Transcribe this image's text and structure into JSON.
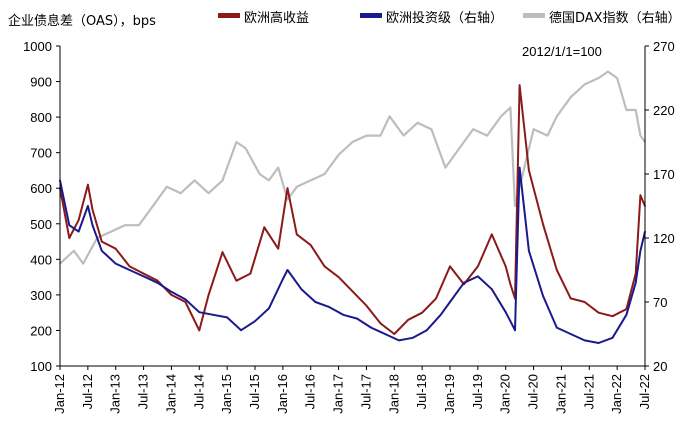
{
  "chart_data": {
    "type": "line",
    "ylabel": "企业债息差（OAS），bps",
    "annotation": "2012/1/1=100",
    "legend": {
      "placement": "top",
      "entries": [
        "欧洲高收益",
        "欧洲投资级（右轴）",
        "德国DAX指数（右轴）"
      ]
    },
    "grid": false,
    "x_range": [
      "2012-01",
      "2022-07"
    ],
    "x_ticks": [
      "Jan-12",
      "Jul-12",
      "Jan-13",
      "Jul-13",
      "Jan-14",
      "Jul-14",
      "Jan-15",
      "Jul-15",
      "Jan-16",
      "Jul-16",
      "Jan-17",
      "Jul-17",
      "Jan-18",
      "Jul-18",
      "Jan-19",
      "Jul-19",
      "Jan-20",
      "Jul-20",
      "Jan-21",
      "Jul-21",
      "Jan-22",
      "Jul-22"
    ],
    "y_left": {
      "min": 100,
      "max": 1000,
      "ticks": [
        100,
        200,
        300,
        400,
        500,
        600,
        700,
        800,
        900,
        1000
      ]
    },
    "y_right": {
      "min": 20,
      "max": 270,
      "ticks": [
        20,
        70,
        120,
        170,
        220,
        270
      ]
    },
    "series": [
      {
        "name": "欧洲高收益",
        "axis": "left",
        "color": "#8B1A1A",
        "x": [
          "2012-01",
          "2012-03",
          "2012-05",
          "2012-07",
          "2012-08",
          "2012-10",
          "2013-01",
          "2013-04",
          "2013-07",
          "2013-10",
          "2014-01",
          "2014-04",
          "2014-07",
          "2014-09",
          "2014-12",
          "2015-03",
          "2015-06",
          "2015-09",
          "2015-12",
          "2016-02",
          "2016-04",
          "2016-07",
          "2016-10",
          "2017-01",
          "2017-04",
          "2017-07",
          "2017-10",
          "2018-01",
          "2018-04",
          "2018-07",
          "2018-10",
          "2019-01",
          "2019-04",
          "2019-07",
          "2019-10",
          "2020-01",
          "2020-02",
          "2020-03",
          "2020-04",
          "2020-06",
          "2020-09",
          "2020-12",
          "2021-03",
          "2021-06",
          "2021-09",
          "2021-12",
          "2022-03",
          "2022-05",
          "2022-06",
          "2022-07"
        ],
        "values": [
          600,
          460,
          510,
          610,
          540,
          450,
          430,
          380,
          360,
          340,
          300,
          280,
          200,
          300,
          420,
          340,
          360,
          490,
          430,
          600,
          470,
          440,
          380,
          350,
          310,
          270,
          220,
          190,
          230,
          250,
          290,
          380,
          330,
          380,
          470,
          380,
          330,
          290,
          890,
          650,
          500,
          370,
          290,
          280,
          250,
          240,
          260,
          360,
          580,
          550
        ]
      },
      {
        "name": "欧洲投资级（右轴）",
        "axis": "right",
        "color": "#1A1A8C",
        "x": [
          "2012-01",
          "2012-03",
          "2012-05",
          "2012-07",
          "2012-08",
          "2012-10",
          "2013-01",
          "2013-04",
          "2013-07",
          "2013-10",
          "2014-01",
          "2014-04",
          "2014-07",
          "2014-10",
          "2015-01",
          "2015-04",
          "2015-07",
          "2015-10",
          "2016-01",
          "2016-02",
          "2016-05",
          "2016-08",
          "2016-11",
          "2017-02",
          "2017-05",
          "2017-08",
          "2017-11",
          "2018-02",
          "2018-05",
          "2018-08",
          "2018-11",
          "2019-01",
          "2019-04",
          "2019-07",
          "2019-10",
          "2020-01",
          "2020-02",
          "2020-03",
          "2020-04",
          "2020-06",
          "2020-09",
          "2020-12",
          "2021-03",
          "2021-06",
          "2021-09",
          "2021-12",
          "2022-03",
          "2022-05",
          "2022-06",
          "2022-07"
        ],
        "values": [
          165,
          130,
          125,
          145,
          130,
          110,
          100,
          95,
          90,
          85,
          78,
          72,
          62,
          60,
          58,
          48,
          55,
          65,
          88,
          95,
          80,
          70,
          66,
          60,
          57,
          50,
          45,
          40,
          42,
          48,
          60,
          70,
          85,
          90,
          80,
          62,
          55,
          48,
          175,
          110,
          75,
          50,
          45,
          40,
          38,
          42,
          60,
          85,
          110,
          125
        ]
      },
      {
        "name": "德国DAX指数（右轴）",
        "axis": "right",
        "color": "#BDBDBD",
        "x": [
          "2012-01",
          "2012-04",
          "2012-06",
          "2012-09",
          "2012-12",
          "2013-03",
          "2013-06",
          "2013-09",
          "2013-12",
          "2014-03",
          "2014-06",
          "2014-09",
          "2014-12",
          "2015-03",
          "2015-05",
          "2015-08",
          "2015-10",
          "2015-12",
          "2016-02",
          "2016-04",
          "2016-07",
          "2016-10",
          "2017-01",
          "2017-04",
          "2017-07",
          "2017-10",
          "2017-12",
          "2018-03",
          "2018-06",
          "2018-09",
          "2018-12",
          "2019-03",
          "2019-06",
          "2019-09",
          "2019-12",
          "2020-02",
          "2020-03",
          "2020-05",
          "2020-07",
          "2020-10",
          "2020-12",
          "2021-03",
          "2021-06",
          "2021-09",
          "2021-11",
          "2022-01",
          "2022-03",
          "2022-05",
          "2022-06",
          "2022-07"
        ],
        "values": [
          100,
          110,
          100,
          120,
          125,
          130,
          130,
          145,
          160,
          155,
          165,
          155,
          165,
          195,
          190,
          170,
          165,
          175,
          150,
          160,
          165,
          170,
          185,
          195,
          200,
          200,
          215,
          200,
          210,
          205,
          175,
          190,
          205,
          200,
          215,
          222,
          145,
          175,
          205,
          200,
          215,
          230,
          240,
          245,
          250,
          245,
          220,
          220,
          200,
          195
        ]
      }
    ]
  }
}
